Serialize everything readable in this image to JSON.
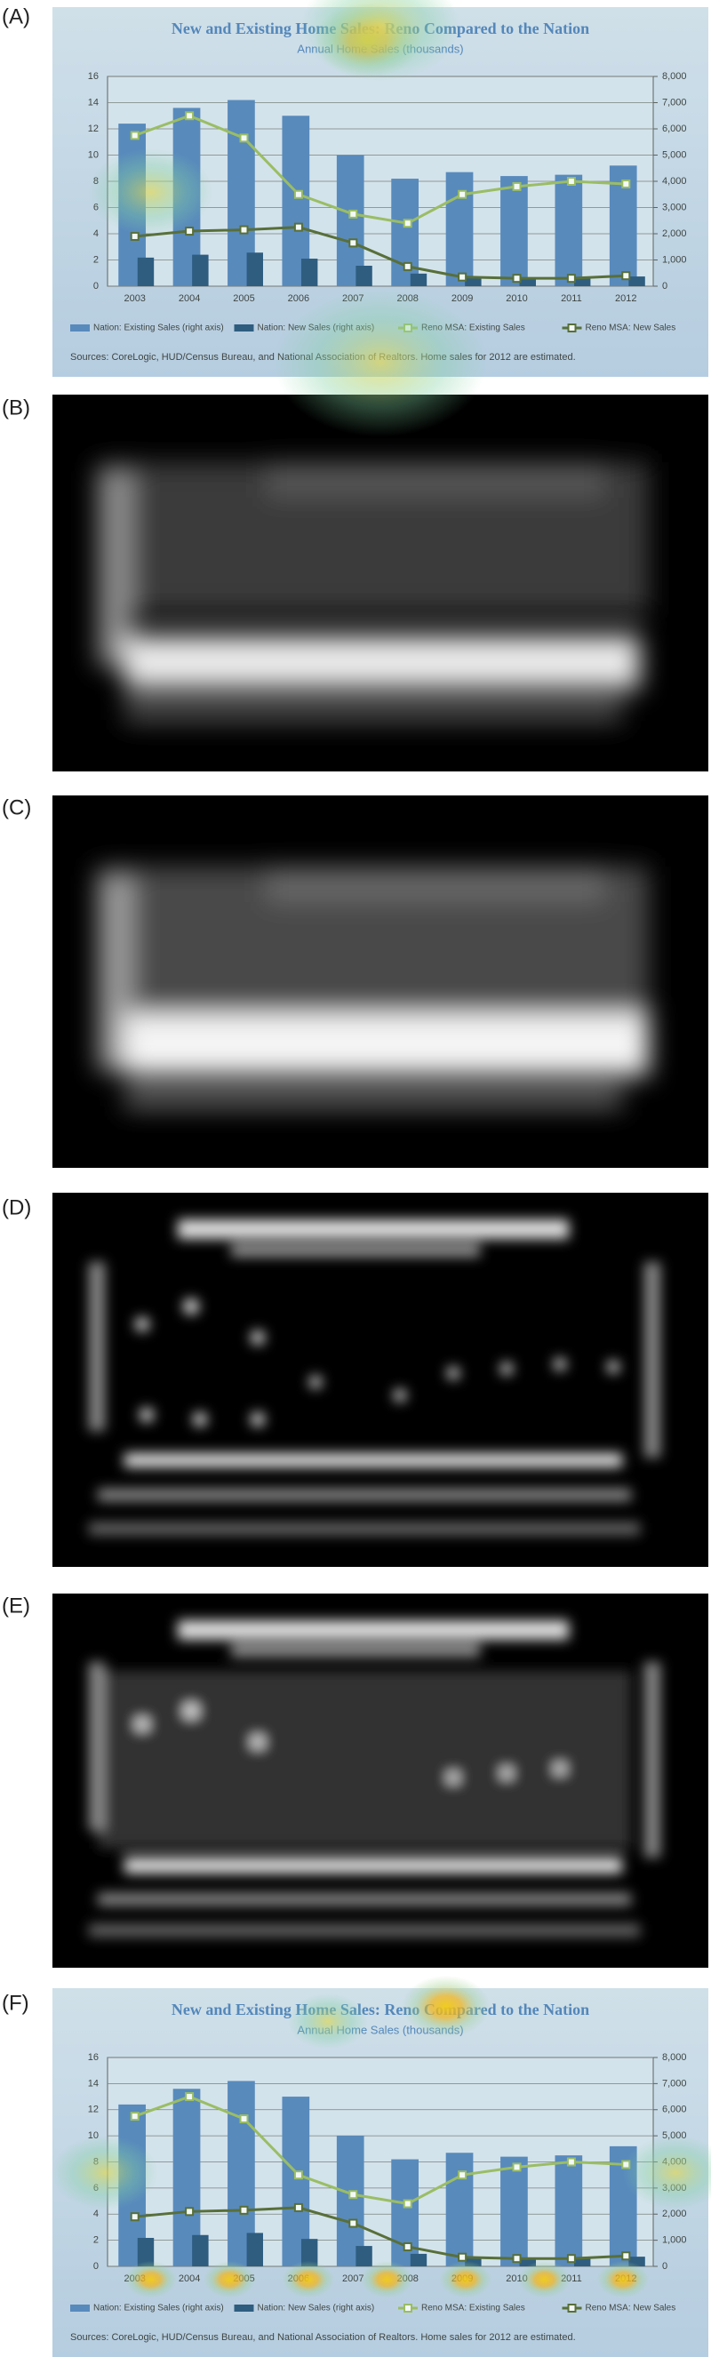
{
  "panels": [
    {
      "label": "(A)"
    },
    {
      "label": "(B)"
    },
    {
      "label": "(C)"
    },
    {
      "label": "(D)"
    },
    {
      "label": "(E)"
    },
    {
      "label": "(F)"
    }
  ],
  "chart_data": [
    {
      "type": "bar",
      "title": "New and Existing Home Sales: Reno Compared to the Nation",
      "subtitle": "Annual Home Sales (thousands)",
      "categories": [
        "2003",
        "2004",
        "2005",
        "2006",
        "2007",
        "2008",
        "2009",
        "2010",
        "2011",
        "2012"
      ],
      "series": [
        {
          "name": "Nation: Existing Sales (right axis)",
          "color": "#4f81bd",
          "axis": "y2",
          "kind": "bar",
          "values": [
            6200,
            6800,
            7100,
            6500,
            5000,
            4100,
            4350,
            4200,
            4250,
            4600
          ]
        },
        {
          "name": "Nation: New Sales (right axis)",
          "color": "#1f4e79",
          "axis": "y2",
          "kind": "bar",
          "values": [
            1090,
            1200,
            1280,
            1050,
            780,
            480,
            370,
            320,
            300,
            370
          ]
        },
        {
          "name": "Reno MSA: Existing Sales",
          "color": "#9bbb59",
          "kind": "line",
          "values": [
            11.5,
            13,
            11.3,
            7,
            5.5,
            4.8,
            7,
            7.6,
            8,
            7.8
          ]
        },
        {
          "name": "Reno MSA: New Sales",
          "color": "#4f6228",
          "kind": "line",
          "values": [
            3.8,
            4.2,
            4.3,
            4.5,
            3.3,
            1.5,
            0.7,
            0.6,
            0.6,
            0.8
          ]
        }
      ],
      "ylim": [
        0,
        16
      ],
      "yticks": [
        0,
        2,
        4,
        6,
        8,
        10,
        12,
        14,
        16
      ],
      "y2lim": [
        0,
        8000
      ],
      "y2ticks": [
        0,
        {
          "value": 1000,
          "label": "1,000"
        },
        {
          "value": 2000,
          "label": "2,000"
        },
        {
          "value": 3000,
          "label": "3,000"
        },
        {
          "value": 4000,
          "label": "4,000"
        },
        {
          "value": 5000,
          "label": "5,000"
        },
        {
          "value": 6000,
          "label": "6,000"
        },
        {
          "value": 7000,
          "label": "7,000"
        },
        {
          "value": 8000,
          "label": "8,000"
        }
      ],
      "grid": true,
      "source": "Sources: CoreLogic, HUD/Census Bureau, and National Association of Realtors. Home sales for 2012 are estimated."
    },
    {
      "type": "bar",
      "title": "New and Existing Home Sales: Reno Compared to the Nation",
      "subtitle": "Annual Home Sales (thousands)",
      "categories": [
        "2003",
        "2004",
        "2005",
        "2006",
        "2007",
        "2008",
        "2009",
        "2010",
        "2011",
        "2012"
      ],
      "series": [
        {
          "name": "Nation: Existing Sales (right axis)",
          "color": "#4f81bd",
          "axis": "y2",
          "kind": "bar",
          "values": [
            6200,
            6800,
            7100,
            6500,
            5000,
            4100,
            4350,
            4200,
            4250,
            4600
          ]
        },
        {
          "name": "Nation: New Sales (right axis)",
          "color": "#1f4e79",
          "axis": "y2",
          "kind": "bar",
          "values": [
            1090,
            1200,
            1280,
            1050,
            780,
            480,
            370,
            320,
            300,
            370
          ]
        },
        {
          "name": "Reno MSA: Existing Sales",
          "color": "#9bbb59",
          "kind": "line",
          "values": [
            11.5,
            13,
            11.3,
            7,
            5.5,
            4.8,
            7,
            7.6,
            8,
            7.8
          ]
        },
        {
          "name": "Reno MSA: New Sales",
          "color": "#4f6228",
          "kind": "line",
          "values": [
            3.8,
            4.2,
            4.3,
            4.5,
            3.3,
            1.5,
            0.7,
            0.6,
            0.6,
            0.8
          ]
        }
      ],
      "ylim": [
        0,
        16
      ],
      "yticks": [
        0,
        2,
        4,
        6,
        8,
        10,
        12,
        14,
        16
      ],
      "y2lim": [
        0,
        8000
      ],
      "y2ticks": [
        0,
        {
          "value": 1000,
          "label": "1,000"
        },
        {
          "value": 2000,
          "label": "2,000"
        },
        {
          "value": 3000,
          "label": "3,000"
        },
        {
          "value": 4000,
          "label": "4,000"
        },
        {
          "value": 5000,
          "label": "5,000"
        },
        {
          "value": 6000,
          "label": "6,000"
        },
        {
          "value": 7000,
          "label": "7,000"
        },
        {
          "value": 8000,
          "label": "8,000"
        }
      ],
      "grid": true,
      "source": "Sources: CoreLogic, HUD/Census Bureau, and National Association of Realtors. Home sales for 2012 are estimated."
    }
  ]
}
